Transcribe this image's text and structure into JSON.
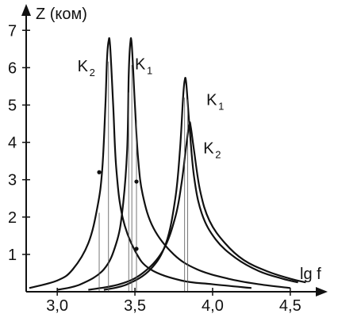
{
  "chart_data": {
    "type": "line",
    "ylabel": "Z (ком)",
    "xlabel": "lg f",
    "xlim": [
      2.8,
      4.7
    ],
    "ylim": [
      0,
      7.6
    ],
    "x_ticks": [
      {
        "value": 3.0,
        "label": "3,0"
      },
      {
        "value": 3.5,
        "label": "3,5"
      },
      {
        "value": 4.0,
        "label": "4,0"
      },
      {
        "value": 4.5,
        "label": "4,5"
      }
    ],
    "y_ticks": [
      {
        "value": 1,
        "label": "1"
      },
      {
        "value": 2,
        "label": "2"
      },
      {
        "value": 3,
        "label": "3"
      },
      {
        "value": 4,
        "label": "4"
      },
      {
        "value": 5,
        "label": "5"
      },
      {
        "value": 6,
        "label": "6"
      },
      {
        "value": 7,
        "label": "7"
      }
    ],
    "grid": false,
    "series": [
      {
        "name": "K",
        "sub": "2",
        "peak_x": 3.33,
        "peak_y": 6.7,
        "label_x": 3.13,
        "label_y": 5.9,
        "points": [
          [
            2.82,
            0.1
          ],
          [
            3.0,
            0.3
          ],
          [
            3.1,
            0.6
          ],
          [
            3.2,
            1.3
          ],
          [
            3.26,
            2.3
          ],
          [
            3.29,
            3.3
          ],
          [
            3.31,
            5.0
          ],
          [
            3.32,
            6.2
          ],
          [
            3.33,
            6.7
          ],
          [
            3.34,
            6.6
          ],
          [
            3.36,
            5.0
          ],
          [
            3.38,
            3.3
          ],
          [
            3.42,
            2.0
          ],
          [
            3.5,
            1.1
          ],
          [
            3.6,
            0.6
          ],
          [
            3.8,
            0.3
          ],
          [
            4.0,
            0.2
          ],
          [
            4.25,
            0.1
          ]
        ]
      },
      {
        "name": "K",
        "sub": "1",
        "peak_x": 3.47,
        "peak_y": 6.65,
        "label_x": 3.5,
        "label_y": 5.95,
        "points": [
          [
            3.0,
            0.05
          ],
          [
            3.15,
            0.2
          ],
          [
            3.3,
            0.6
          ],
          [
            3.38,
            1.3
          ],
          [
            3.42,
            2.2
          ],
          [
            3.45,
            3.8
          ],
          [
            3.46,
            5.8
          ],
          [
            3.47,
            6.65
          ],
          [
            3.48,
            6.6
          ],
          [
            3.5,
            5.0
          ],
          [
            3.52,
            3.6
          ],
          [
            3.55,
            2.6
          ],
          [
            3.62,
            1.7
          ],
          [
            3.75,
            1.0
          ],
          [
            3.9,
            0.6
          ],
          [
            4.1,
            0.35
          ],
          [
            4.3,
            0.2
          ],
          [
            4.5,
            0.1
          ]
        ]
      },
      {
        "name": "K",
        "sub": "1",
        "peak_x": 3.82,
        "peak_y": 5.65,
        "label_x": 3.96,
        "label_y": 5.0,
        "points": [
          [
            3.3,
            0.05
          ],
          [
            3.45,
            0.2
          ],
          [
            3.6,
            0.6
          ],
          [
            3.7,
            1.3
          ],
          [
            3.76,
            2.5
          ],
          [
            3.79,
            3.8
          ],
          [
            3.81,
            5.2
          ],
          [
            3.82,
            5.65
          ],
          [
            3.83,
            5.6
          ],
          [
            3.85,
            4.5
          ],
          [
            3.88,
            3.1
          ],
          [
            3.93,
            2.1
          ],
          [
            4.02,
            1.4
          ],
          [
            4.15,
            0.9
          ],
          [
            4.3,
            0.55
          ],
          [
            4.45,
            0.35
          ],
          [
            4.55,
            0.25
          ]
        ]
      },
      {
        "name": "K",
        "sub": "2",
        "peak_x": 3.85,
        "peak_y": 4.5,
        "label_x": 3.94,
        "label_y": 3.7,
        "points": [
          [
            3.2,
            0.05
          ],
          [
            3.4,
            0.2
          ],
          [
            3.55,
            0.5
          ],
          [
            3.68,
            1.1
          ],
          [
            3.76,
            2.0
          ],
          [
            3.8,
            2.9
          ],
          [
            3.83,
            3.9
          ],
          [
            3.85,
            4.5
          ],
          [
            3.86,
            4.4
          ],
          [
            3.88,
            3.8
          ],
          [
            3.92,
            2.7
          ],
          [
            3.98,
            1.9
          ],
          [
            4.08,
            1.3
          ],
          [
            4.2,
            0.85
          ],
          [
            4.35,
            0.55
          ],
          [
            4.5,
            0.35
          ],
          [
            4.6,
            0.25
          ]
        ]
      }
    ],
    "markers": [
      {
        "x": 3.27,
        "y": 3.2
      },
      {
        "x": 3.51,
        "y": 2.95
      },
      {
        "x": 3.51,
        "y": 1.15
      }
    ],
    "verticals": [
      3.27,
      3.33,
      3.46,
      3.48,
      3.51,
      3.82,
      3.84
    ]
  }
}
